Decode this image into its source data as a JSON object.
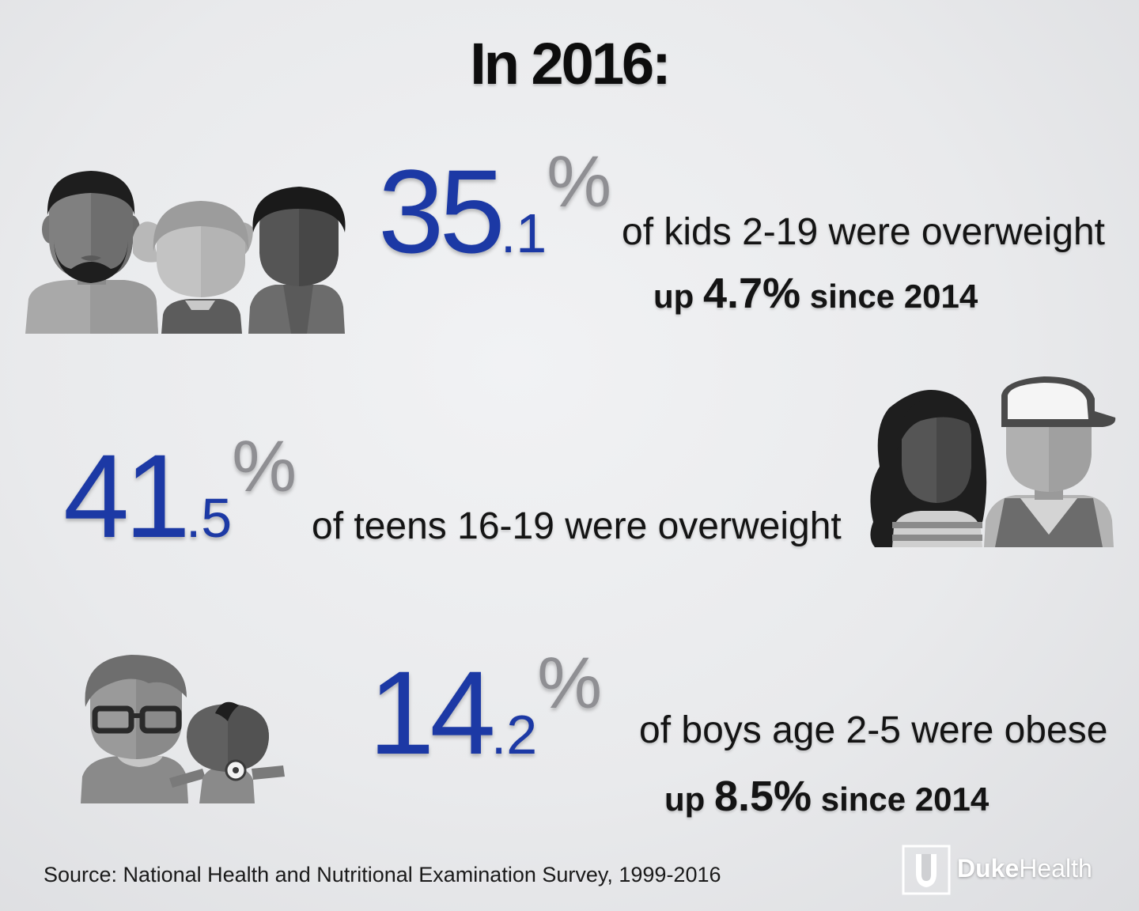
{
  "title": "In 2016:",
  "stats": [
    {
      "int": "35",
      "dec": ".1",
      "pct": "%",
      "description": "of kids 2-19 were overweight",
      "sub_prefix": "up ",
      "sub_value": "4.7%",
      "sub_suffix": " since 2014"
    },
    {
      "int": "41",
      "dec": ".5",
      "pct": "%",
      "description": "of teens 16-19 were overweight"
    },
    {
      "int": "14",
      "dec": ".2",
      "pct": "%",
      "description": "of boys age 2-5 were obese",
      "sub_prefix": "up ",
      "sub_value": "8.5%",
      "sub_suffix": " since 2014"
    }
  ],
  "source": "Source: National Health and Nutritional Examination Survey, 1999-2016",
  "logo": {
    "word_bold": "Duke",
    "word_regular": "Health"
  },
  "colors": {
    "accent_blue": "#1c39a5",
    "percent_gray": "#8f8f93",
    "background": "#e9eaec"
  },
  "icons": [
    "family-group-icon",
    "teen-couple-icon",
    "parent-baby-icon",
    "duke-shield-icon"
  ]
}
